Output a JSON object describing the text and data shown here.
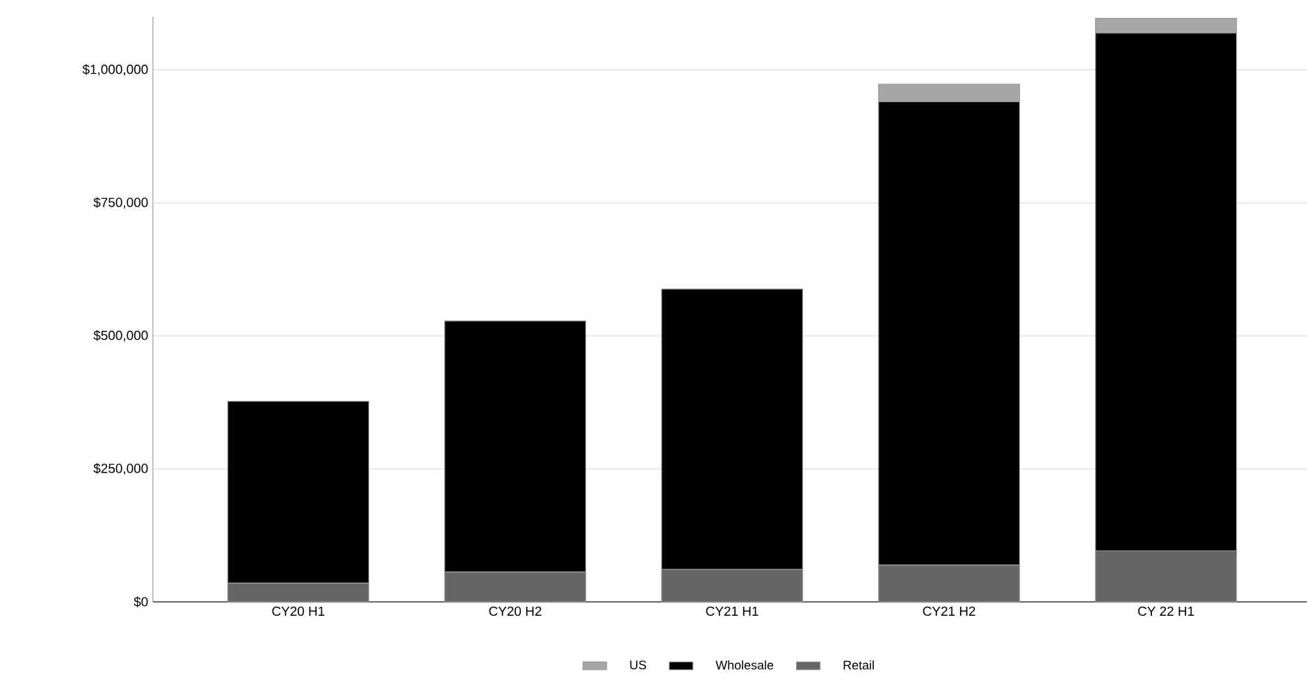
{
  "chart_data": {
    "type": "bar",
    "stacked": true,
    "categories": [
      "CY20 H1",
      "CY20 H2",
      "CY21 H1",
      "CY21 H2",
      "CY 22 H1"
    ],
    "series": [
      {
        "name": "Retail",
        "color": "#666666",
        "values": [
          35000,
          56000,
          61000,
          69000,
          96000
        ]
      },
      {
        "name": "Wholesale",
        "color": "#000000",
        "values": [
          342000,
          472000,
          527000,
          871000,
          973000
        ]
      },
      {
        "name": "US",
        "color": "#a6a6a6",
        "values": [
          0,
          0,
          0,
          33000,
          28000
        ]
      }
    ],
    "ylim": [
      0,
      1100000
    ],
    "yticks": [
      {
        "value": 0,
        "label": "$0"
      },
      {
        "value": 250000,
        "label": "$250,000"
      },
      {
        "value": 500000,
        "label": "$500,000"
      },
      {
        "value": 750000,
        "label": "$750,000"
      },
      {
        "value": 1000000,
        "label": "$1,000,000"
      }
    ],
    "grid": "y",
    "legend": "bottom"
  }
}
